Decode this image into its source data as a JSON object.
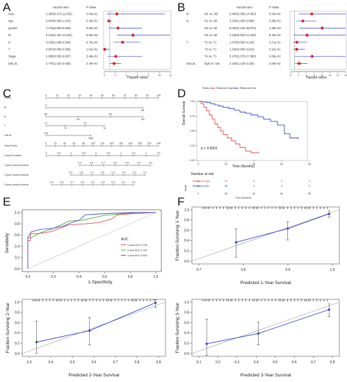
{
  "panels": {
    "A": {
      "letter": "A",
      "headers": {
        "hr": "Hazard ratio",
        "p": "P Value"
      },
      "xlabel": "Hazard ratios",
      "ticks": [
        "0",
        "2",
        "4",
        "6",
        "8",
        "10",
        "12"
      ],
      "rows": [
        {
          "name": "race",
          "hr": "2.280(0.472-11.002)",
          "p": "3.04e-01"
        },
        {
          "name": "age",
          "hr": "0.843(0.494-1.441)",
          "p": "5.33e-01"
        },
        {
          "name": "gender",
          "hr": "2.476(0.894-6.866)",
          "p": "8.08e-02"
        },
        {
          "name": "M",
          "hr": "5.215(2.281-11.922)",
          "p": "8.55e-05"
        },
        {
          "name": "N",
          "hr": "3.318(1.685-6.506)",
          "p": "4.76e-04"
        },
        {
          "name": "T",
          "hr": "0.067(0.005-0.956)",
          "p": "1.51e-02"
        },
        {
          "name": "Stage",
          "hr": "2.086(0.583-6.887)",
          "p": "2.48e-01"
        },
        {
          "name": "GNL3L",
          "hr": "1.770(1.032-3.035)",
          "p": "3.79e-02"
        }
      ]
    },
    "B": {
      "letter": "B",
      "headers": {
        "hr": "Hazard ratio",
        "p": "P Value"
      },
      "xlabel": "Hazard ratios",
      "ticks": [
        "0",
        "2",
        "4",
        "6",
        "8",
        "10",
        "12",
        "14"
      ],
      "rows": [
        {
          "group": "M",
          "name": "M1 vs. M0",
          "hr": "5.400(2.080-14.050)",
          "p": "5.43e-04"
        },
        {
          "group": "N",
          "name": "N1 vs. N0",
          "hr": "3.100(1.450-6.580)",
          "p": "3.36e-03"
        },
        {
          "group": "",
          "name": "N2 vs. N0",
          "hr": "8.000(2.240-28.670)",
          "p": "1.38e-03"
        },
        {
          "group": "",
          "name": "N3 vs. N0",
          "hr": "4.160(0.820-21.040)",
          "p": "8.46e-02"
        },
        {
          "group": "T",
          "name": "T2 vs. T1",
          "hr": "1.570(0.580-4.220)",
          "p": "3.71e-01"
        },
        {
          "group": "",
          "name": "T3 vs. T1",
          "hr": "1.530(0.660-3.610)",
          "p": "3.10e-01"
        },
        {
          "group": "",
          "name": "T4 vs. T1",
          "hr": "5.470(1.070-27.860)",
          "p": "4.08e-02"
        },
        {
          "group": "GNL3L",
          "name": "high vs. low",
          "hr": "2.160(1.130-4.230)",
          "p": "2.08e-02"
        }
      ]
    },
    "C": {
      "letter": "C",
      "rows": [
        {
          "label": "Points",
          "ticks": [
            "0",
            "10",
            "20",
            "30",
            "40",
            "50",
            "60",
            "70",
            "80",
            "90",
            "100"
          ]
        },
        {
          "label": "M",
          "ticks": [
            "0",
            "M1"
          ]
        },
        {
          "label": "N",
          "ticks": [
            "N0",
            "N1",
            "N2",
            "N3"
          ]
        },
        {
          "label": "T",
          "ticks": [
            "T1",
            "T2",
            "T3",
            "T4"
          ]
        },
        {
          "label": "GNL3L",
          "ticks": [
            "Low",
            "high"
          ]
        },
        {
          "label": "Total Points",
          "ticks": [
            "0",
            "20",
            "40",
            "60",
            "80",
            "100",
            "120",
            "140",
            "160",
            "180",
            "200",
            "220",
            "240"
          ]
        },
        {
          "label": "Linear Predictor",
          "ticks": [
            "-2",
            "-1.5",
            "-1",
            "-0.5",
            "0",
            "0.5",
            "1",
            "1.5",
            "2",
            "2.5"
          ]
        },
        {
          "label": "1-year overall survival",
          "ticks": [
            "0.9",
            "0.8",
            "0.7",
            "0.6",
            "0.5",
            "0.4",
            "0.3"
          ]
        },
        {
          "label": "2-year overall survival",
          "ticks": [
            "0.9",
            "0.8",
            "0.7",
            "0.6",
            "0.5",
            "0.4",
            "0.3",
            "0.2"
          ]
        },
        {
          "label": "3-year overall survival",
          "ticks": [
            "0.9",
            "0.8",
            "0.7",
            "0.6",
            "0.5",
            "0.4",
            "0.3",
            "0.2",
            "0.1"
          ]
        }
      ]
    },
    "D": {
      "letter": "D",
      "legend_title": "Strata",
      "legend_high": "Riskscore=high",
      "legend_low": "Riskscore=low",
      "ylabel": "Overall Survival",
      "xlabel": "Time (Months)",
      "pvalue": "p < 0.0001",
      "yticks": [
        "0.00",
        "0.25",
        "0.50",
        "0.75",
        "1.00"
      ],
      "xticks": [
        "0",
        "20",
        "40",
        "60",
        "80"
      ],
      "risk_title": "Number at risk",
      "risk_xlabel": "Time (Months)",
      "risk_rows": [
        {
          "label": "Riskscore=high",
          "values": [
            "83",
            "15",
            "5",
            "0",
            "0"
          ]
        },
        {
          "label": "Riskscore=low",
          "values": [
            "84",
            "35",
            "9",
            "3",
            "0"
          ]
        }
      ],
      "strata_label": "Strata"
    },
    "E": {
      "letter": "E",
      "xlabel": "1-Specificity",
      "ylabel": "Sensitivity",
      "xticks": [
        "0.0",
        "0.2",
        "0.4",
        "0.6",
        "0.8",
        "1.0"
      ],
      "yticks": [
        "0.0",
        "0.2",
        "0.4",
        "0.6",
        "0.8",
        "1.0"
      ],
      "legend_title": "AUC",
      "legend": [
        {
          "label": "1-year AUC:0.726",
          "color": "#e05050"
        },
        {
          "label": "2-year AUC:0.782",
          "color": "#40b040"
        },
        {
          "label": "3-year AUC:0.833",
          "color": "#5050d0"
        }
      ]
    },
    "F": {
      "letter": "F",
      "plots": [
        {
          "ylabel": "Fraction Surviving 1-Year",
          "xlabel": "Predicted 1-Year Survival",
          "xticks": [
            "0.7",
            "0.8",
            "0.9",
            "1.0"
          ],
          "yticks": [
            "0.0",
            "0.2",
            "0.4",
            "0.6",
            "0.8",
            "1.0"
          ]
        },
        {
          "ylabel": "Fraction Surviving 2-Year",
          "xlabel": "Predicted 2-Year Survival",
          "xticks": [
            "0.3",
            "0.4",
            "0.5",
            "0.6",
            "0.7",
            "0.8",
            "0.9"
          ],
          "yticks": [
            "0.0",
            "0.2",
            "0.4",
            "0.6",
            "0.8",
            "1.0"
          ]
        },
        {
          "ylabel": "Fraction Surviving 3-Year",
          "xlabel": "Predicted 3-Year Survival",
          "xticks": [
            "0.1",
            "0.2",
            "0.3",
            "0.4",
            "0.5",
            "0.6",
            "0.7",
            "0.8"
          ],
          "yticks": [
            "0.0",
            "0.2",
            "0.4",
            "0.6",
            "0.8",
            "1.0"
          ]
        }
      ]
    }
  }
}
